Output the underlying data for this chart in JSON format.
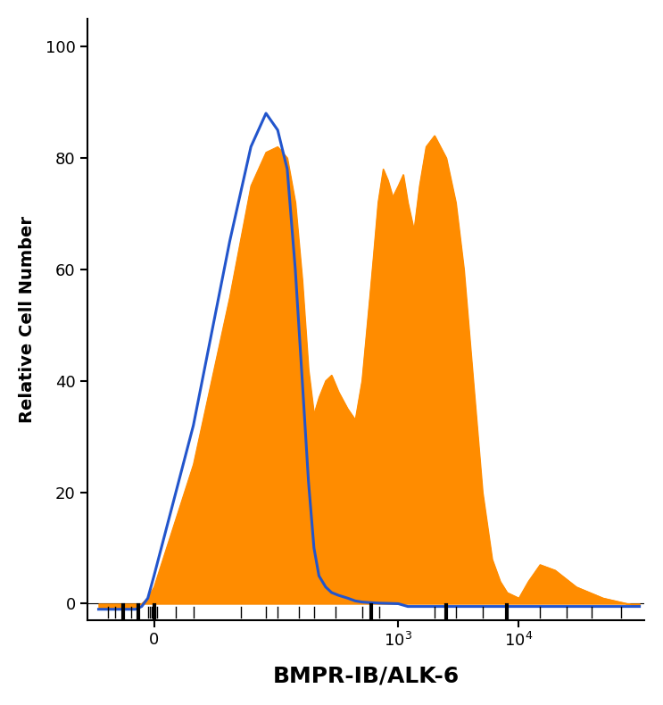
{
  "title": "",
  "xlabel": "BMPR-IB/ALK-6",
  "ylabel": "Relative Cell Number",
  "xlim_linear": -200,
  "xlim_log_start": 10,
  "xlim_end": 100000,
  "ylim": [
    -3,
    105
  ],
  "yticks": [
    0,
    20,
    40,
    60,
    80,
    100
  ],
  "xtick_labels": [
    "0",
    "10$^3$",
    "10$^4$"
  ],
  "xtick_positions": [
    0,
    1000,
    10000
  ],
  "orange_color": "#FF8C00",
  "blue_color": "#2255CC",
  "bg_color": "#FFFFFF",
  "xlabel_fontsize": 18,
  "ylabel_fontsize": 14,
  "tick_fontsize": 13,
  "xlabel_fontweight": "bold",
  "isotype_x": [
    -180,
    -160,
    -140,
    -120,
    -100,
    -80,
    -60,
    -40,
    -20,
    0,
    20,
    40,
    60,
    80,
    100,
    120,
    140,
    160,
    180,
    200,
    220,
    250,
    280,
    320,
    380,
    440,
    500,
    580,
    700,
    850,
    1000,
    1200,
    1500,
    2000,
    3000,
    5000,
    10000,
    20000,
    50000,
    100000
  ],
  "isotype_y": [
    -1,
    -1,
    -1,
    -1,
    -1,
    -1,
    -1,
    -0.5,
    1,
    5,
    32,
    65,
    82,
    88,
    85,
    78,
    60,
    40,
    22,
    10,
    5,
    3,
    2,
    1.5,
    1,
    0.5,
    0.3,
    0.2,
    0.1,
    0.05,
    0,
    -0.5,
    -0.5,
    -0.5,
    -0.5,
    -0.5,
    -0.5,
    -0.5,
    -0.5,
    -0.5
  ],
  "filled_x": [
    -180,
    -160,
    -140,
    -120,
    -100,
    -80,
    -60,
    -40,
    -20,
    0,
    20,
    40,
    60,
    80,
    100,
    120,
    140,
    160,
    180,
    200,
    220,
    250,
    280,
    320,
    380,
    440,
    500,
    580,
    620,
    680,
    750,
    820,
    900,
    1000,
    1100,
    1200,
    1350,
    1500,
    1700,
    2000,
    2500,
    3000,
    3500,
    4000,
    5000,
    6000,
    7000,
    8000,
    10000,
    12000,
    15000,
    20000,
    30000,
    50000,
    100000
  ],
  "filled_y": [
    -1,
    -1,
    -1,
    -1,
    -1,
    -1,
    -0.5,
    0,
    1,
    3,
    25,
    55,
    75,
    81,
    82,
    80,
    72,
    58,
    42,
    34,
    37,
    40,
    41,
    38,
    35,
    33,
    40,
    55,
    62,
    72,
    78,
    76,
    73,
    75,
    77,
    72,
    67,
    75,
    82,
    84,
    80,
    72,
    60,
    45,
    20,
    8,
    4,
    2,
    1,
    4,
    7,
    6,
    3,
    1,
    -0.5
  ]
}
